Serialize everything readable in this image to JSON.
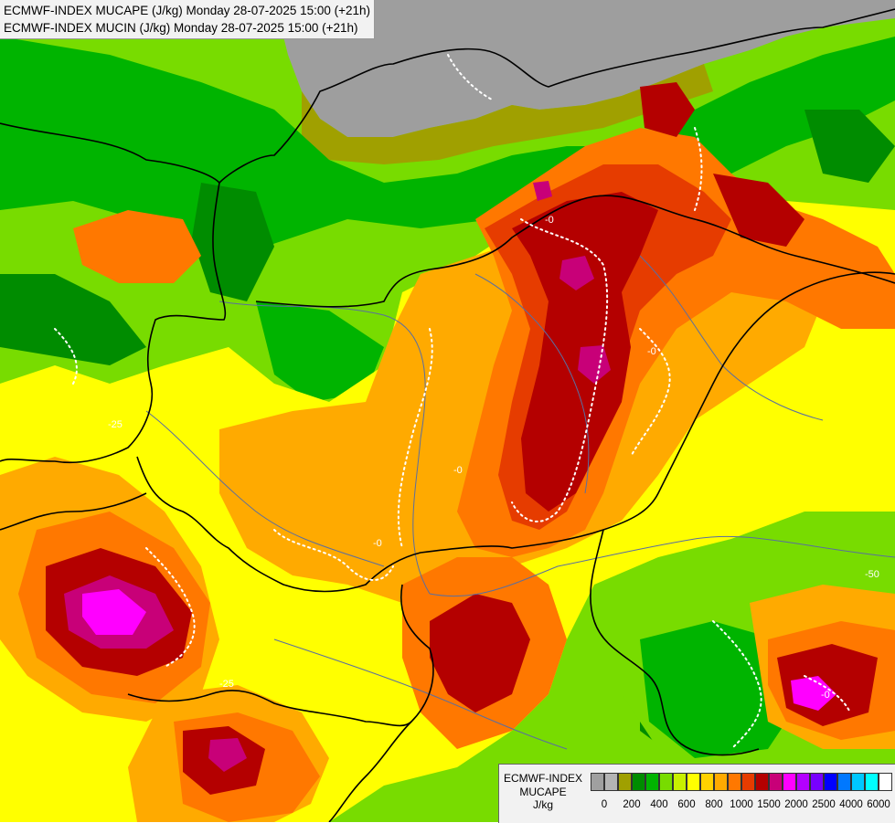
{
  "header": {
    "line1": "ECMWF-INDEX MUCAPE (J/kg) Monday 28-07-2025 15:00 (+21h)",
    "line2": "ECMWF-INDEX MUCIN (J/kg) Monday 28-07-2025 15:00 (+21h)"
  },
  "legend": {
    "title_lines": [
      "ECMWF-INDEX",
      "MUCAPE",
      "J/kg"
    ],
    "colors": [
      "#a0a0a0",
      "#b4b4b4",
      "#a0a000",
      "#008c00",
      "#00b400",
      "#78dc00",
      "#c8f000",
      "#ffff00",
      "#ffd200",
      "#ffaa00",
      "#ff7800",
      "#e63c00",
      "#b40000",
      "#c80078",
      "#ff00ff",
      "#b400ff",
      "#7800ff",
      "#0000ff",
      "#0078ff",
      "#00c8ff",
      "#00ffff",
      "#ffffff"
    ],
    "ticks": [
      "0",
      "200",
      "400",
      "600",
      "800",
      "1000",
      "1500",
      "2000",
      "2500",
      "4000",
      "6000"
    ]
  },
  "map": {
    "contour_labels": [
      "-0",
      "-0",
      "-0",
      "-0",
      "-25",
      "-25",
      "-50",
      "-0"
    ],
    "colors": {
      "no_data": "#9e9e9e",
      "border": "#000000",
      "river": "#5a6ea0",
      "cin_contour": "#ffffff"
    }
  }
}
